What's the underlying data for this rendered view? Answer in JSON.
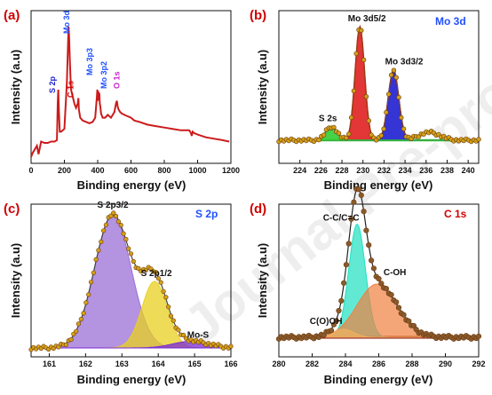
{
  "watermark": "Journal Pre-proof",
  "colors": {
    "survey": "#cc1b1b",
    "envelope": "#e02020",
    "dots": "#d4a017",
    "dots_edge": "#6b3a10",
    "baseline_green": "#33cc33",
    "mo_blue": "#1f1fd0",
    "s2p_purple": "#9b6fd6",
    "s2p_yellow": "#e8d020",
    "s2p_violet": "#7a2ad6",
    "c1s_cyan": "#20e0c0",
    "c1s_orange": "#f08040",
    "baseline_maroon": "#8b1010",
    "label_red": "#d00000",
    "label_blue": "#2050ff"
  },
  "chart_data": [
    {
      "panel": "(a)",
      "type": "line",
      "xlabel": "Binding energy (eV)",
      "ylabel": "Intensity (a.u)",
      "xlim": [
        0,
        1200
      ],
      "xticks": [
        0,
        200,
        400,
        600,
        800,
        1000,
        1200
      ],
      "series": [
        {
          "values_x": [
            0,
            10,
            25,
            35,
            45,
            60,
            80,
            100,
            120,
            140,
            155,
            160,
            163,
            167,
            172,
            180,
            200,
            215,
            225,
            228,
            231,
            233,
            236,
            240,
            250,
            260,
            270,
            280,
            284,
            287,
            295,
            310,
            330,
            350,
            370,
            385,
            395,
            398,
            400,
            405,
            410,
            413,
            416,
            420,
            430,
            445,
            460,
            480,
            500,
            510,
            515,
            520,
            525,
            530,
            535,
            545,
            560,
            580,
            600,
            620,
            650,
            700,
            750,
            800,
            850,
            900,
            950,
            960,
            965,
            970,
            980,
            1000,
            1050,
            1100,
            1150,
            1190
          ],
          "values_y": [
            0.02,
            0.05,
            0.08,
            0.1,
            0.04,
            0.13,
            0.12,
            0.12,
            0.13,
            0.13,
            0.14,
            0.4,
            0.5,
            0.35,
            0.2,
            0.2,
            0.22,
            0.55,
            0.95,
            0.88,
            0.78,
            0.7,
            0.6,
            0.5,
            0.45,
            0.4,
            0.37,
            0.4,
            0.44,
            0.36,
            0.3,
            0.28,
            0.27,
            0.26,
            0.27,
            0.3,
            0.45,
            0.5,
            0.42,
            0.48,
            0.47,
            0.4,
            0.38,
            0.33,
            0.3,
            0.3,
            0.32,
            0.3,
            0.34,
            0.4,
            0.42,
            0.38,
            0.36,
            0.35,
            0.34,
            0.33,
            0.32,
            0.31,
            0.3,
            0.28,
            0.27,
            0.25,
            0.24,
            0.23,
            0.22,
            0.21,
            0.21,
            0.19,
            0.17,
            0.2,
            0.19,
            0.18,
            0.16,
            0.15,
            0.14,
            0.13
          ]
        }
      ],
      "tags": [
        {
          "text": "S 2p",
          "x": 165,
          "color": "#1f1fd0"
        },
        {
          "text": "Mo 3d",
          "x": 230,
          "color": "#2050ff"
        },
        {
          "text": "C 1s",
          "x": 285,
          "color": "#d00000"
        },
        {
          "text": "Mo 3p3",
          "x": 400,
          "color": "#2050ff"
        },
        {
          "text": "Mo 3p2",
          "x": 420,
          "color": "#2050ff"
        },
        {
          "text": "O 1s",
          "x": 530,
          "color": "#cc22cc"
        }
      ]
    },
    {
      "panel": "(b)",
      "type": "line",
      "tag": "Mo 3d",
      "xlabel": "Binding energy (eV)",
      "ylabel": "Intensity (a.u)",
      "xlim": [
        222,
        241
      ],
      "xticks": [
        224,
        226,
        228,
        230,
        232,
        234,
        236,
        238,
        240
      ],
      "peaks": [
        {
          "label": "Mo 3d5/2",
          "center": 229.7,
          "height": 1.0,
          "sigma": 0.45,
          "color": "#e02020"
        },
        {
          "label": "Mo 3d3/2",
          "center": 232.9,
          "height": 0.62,
          "sigma": 0.5,
          "color": "#1f1fd0"
        },
        {
          "label": "S 2s",
          "center": 227.0,
          "height": 0.12,
          "sigma": 0.55,
          "color": "#33cc33"
        }
      ],
      "shoulder": {
        "center": 236.3,
        "height": 0.07,
        "sigma": 1.0
      }
    },
    {
      "panel": "(c)",
      "type": "area",
      "tag": "S 2p",
      "xlabel": "Binding energy (eV)",
      "ylabel": "Intensity (a.u)",
      "xlim": [
        160.5,
        166
      ],
      "xticks": [
        161,
        162,
        163,
        164,
        165,
        166
      ],
      "peaks": [
        {
          "label": "S 2p3/2",
          "center": 162.75,
          "height": 1.0,
          "sigma": 0.5,
          "color": "#9b6fd6"
        },
        {
          "label": "S 2p1/2",
          "center": 163.9,
          "height": 0.5,
          "sigma": 0.35,
          "color": "#e8d020"
        },
        {
          "label": "Mo-S",
          "center": 164.9,
          "height": 0.05,
          "sigma": 0.5,
          "color": "#7a2ad6"
        }
      ]
    },
    {
      "panel": "(d)",
      "type": "area",
      "tag": "C 1s",
      "xlabel": "Binding energy (eV)",
      "ylabel": "Intensity (a.u)",
      "xlim": [
        280,
        292
      ],
      "xticks": [
        280,
        282,
        284,
        286,
        288,
        290,
        292
      ],
      "peaks": [
        {
          "label": "C-C/C=C",
          "center": 284.7,
          "height": 0.85,
          "sigma": 0.5,
          "color": "#20e0c0"
        },
        {
          "label": "C-OH",
          "center": 285.9,
          "height": 0.4,
          "sigma": 1.2,
          "color": "#f08040"
        },
        {
          "label": "C(O)OH",
          "center": 283.9,
          "height": 0.06,
          "sigma": 0.6,
          "color": "#f0b060"
        }
      ]
    }
  ]
}
